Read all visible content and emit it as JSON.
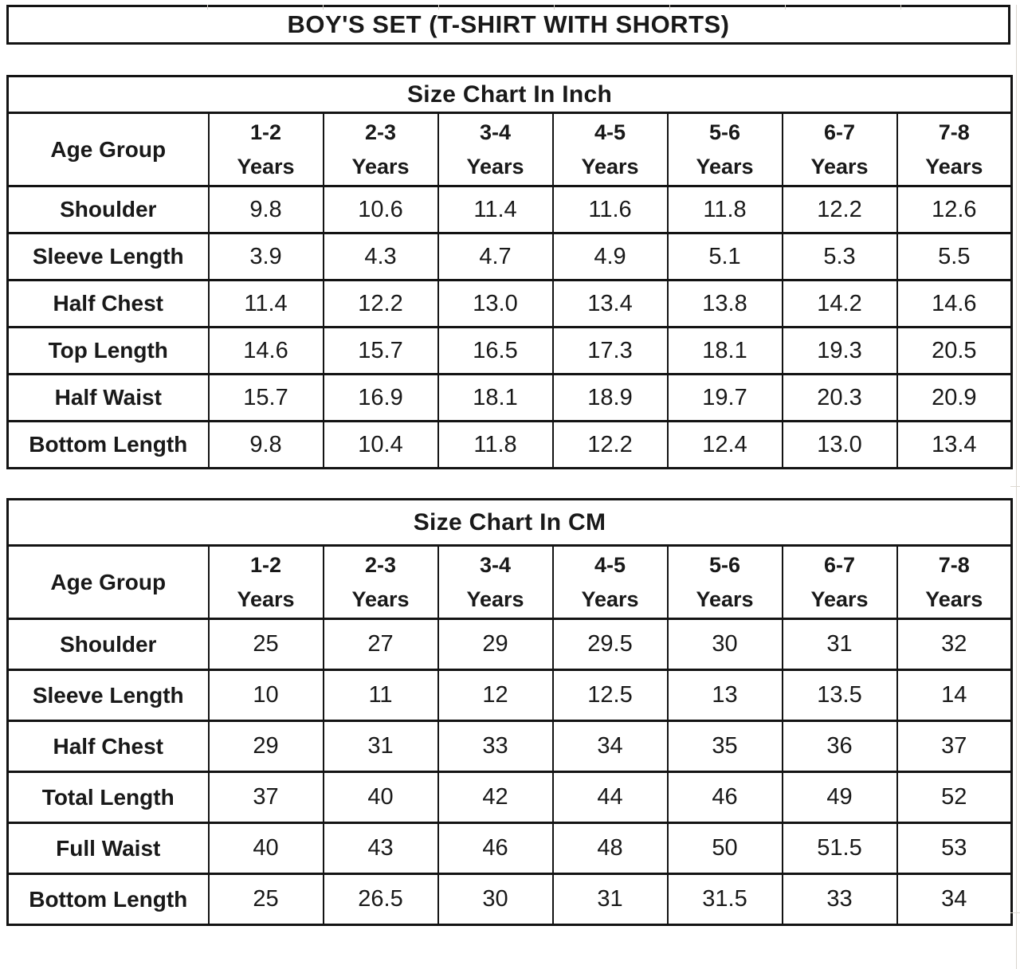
{
  "title": "BOY'S SET (T-SHIRT WITH SHORTS)",
  "tables": [
    {
      "id": "inch",
      "title": "Size Chart In Inch",
      "corner_label": "Age Group",
      "age_columns": [
        {
          "range": "1-2",
          "unit": "Years"
        },
        {
          "range": "2-3",
          "unit": "Years"
        },
        {
          "range": "3-4",
          "unit": "Years"
        },
        {
          "range": "4-5",
          "unit": "Years"
        },
        {
          "range": "5-6",
          "unit": "Years"
        },
        {
          "range": "6-7",
          "unit": "Years"
        },
        {
          "range": "7-8",
          "unit": "Years"
        }
      ],
      "rows": [
        {
          "label": "Shoulder",
          "values": [
            "9.8",
            "10.6",
            "11.4",
            "11.6",
            "11.8",
            "12.2",
            "12.6"
          ]
        },
        {
          "label": "Sleeve Length",
          "values": [
            "3.9",
            "4.3",
            "4.7",
            "4.9",
            "5.1",
            "5.3",
            "5.5"
          ]
        },
        {
          "label": "Half Chest",
          "values": [
            "11.4",
            "12.2",
            "13.0",
            "13.4",
            "13.8",
            "14.2",
            "14.6"
          ]
        },
        {
          "label": "Top Length",
          "values": [
            "14.6",
            "15.7",
            "16.5",
            "17.3",
            "18.1",
            "19.3",
            "20.5"
          ]
        },
        {
          "label": "Half Waist",
          "values": [
            "15.7",
            "16.9",
            "18.1",
            "18.9",
            "19.7",
            "20.3",
            "20.9"
          ]
        },
        {
          "label": "Bottom Length",
          "values": [
            "9.8",
            "10.4",
            "11.8",
            "12.2",
            "12.4",
            "13.0",
            "13.4"
          ]
        }
      ]
    },
    {
      "id": "cm",
      "title": "Size Chart In CM",
      "corner_label": "Age Group",
      "age_columns": [
        {
          "range": "1-2",
          "unit": "Years"
        },
        {
          "range": "2-3",
          "unit": "Years"
        },
        {
          "range": "3-4",
          "unit": "Years"
        },
        {
          "range": "4-5",
          "unit": "Years"
        },
        {
          "range": "5-6",
          "unit": "Years"
        },
        {
          "range": "6-7",
          "unit": "Years"
        },
        {
          "range": "7-8",
          "unit": "Years"
        }
      ],
      "rows": [
        {
          "label": "Shoulder",
          "values": [
            "25",
            "27",
            "29",
            "29.5",
            "30",
            "31",
            "32"
          ]
        },
        {
          "label": "Sleeve Length",
          "values": [
            "10",
            "11",
            "12",
            "12.5",
            "13",
            "13.5",
            "14"
          ]
        },
        {
          "label": "Half Chest",
          "values": [
            "29",
            "31",
            "33",
            "34",
            "35",
            "36",
            "37"
          ]
        },
        {
          "label": "Total Length",
          "values": [
            "37",
            "40",
            "42",
            "44",
            "46",
            "49",
            "52"
          ]
        },
        {
          "label": "Full Waist",
          "values": [
            "40",
            "43",
            "46",
            "48",
            "50",
            "51.5",
            "53"
          ]
        },
        {
          "label": "Bottom Length",
          "values": [
            "25",
            "26.5",
            "30",
            "31",
            "31.5",
            "33",
            "34"
          ]
        }
      ]
    }
  ],
  "colors": {
    "border": "#131313",
    "text": "#191919",
    "gridline": "#d9d5ce",
    "background": "#ffffff"
  }
}
